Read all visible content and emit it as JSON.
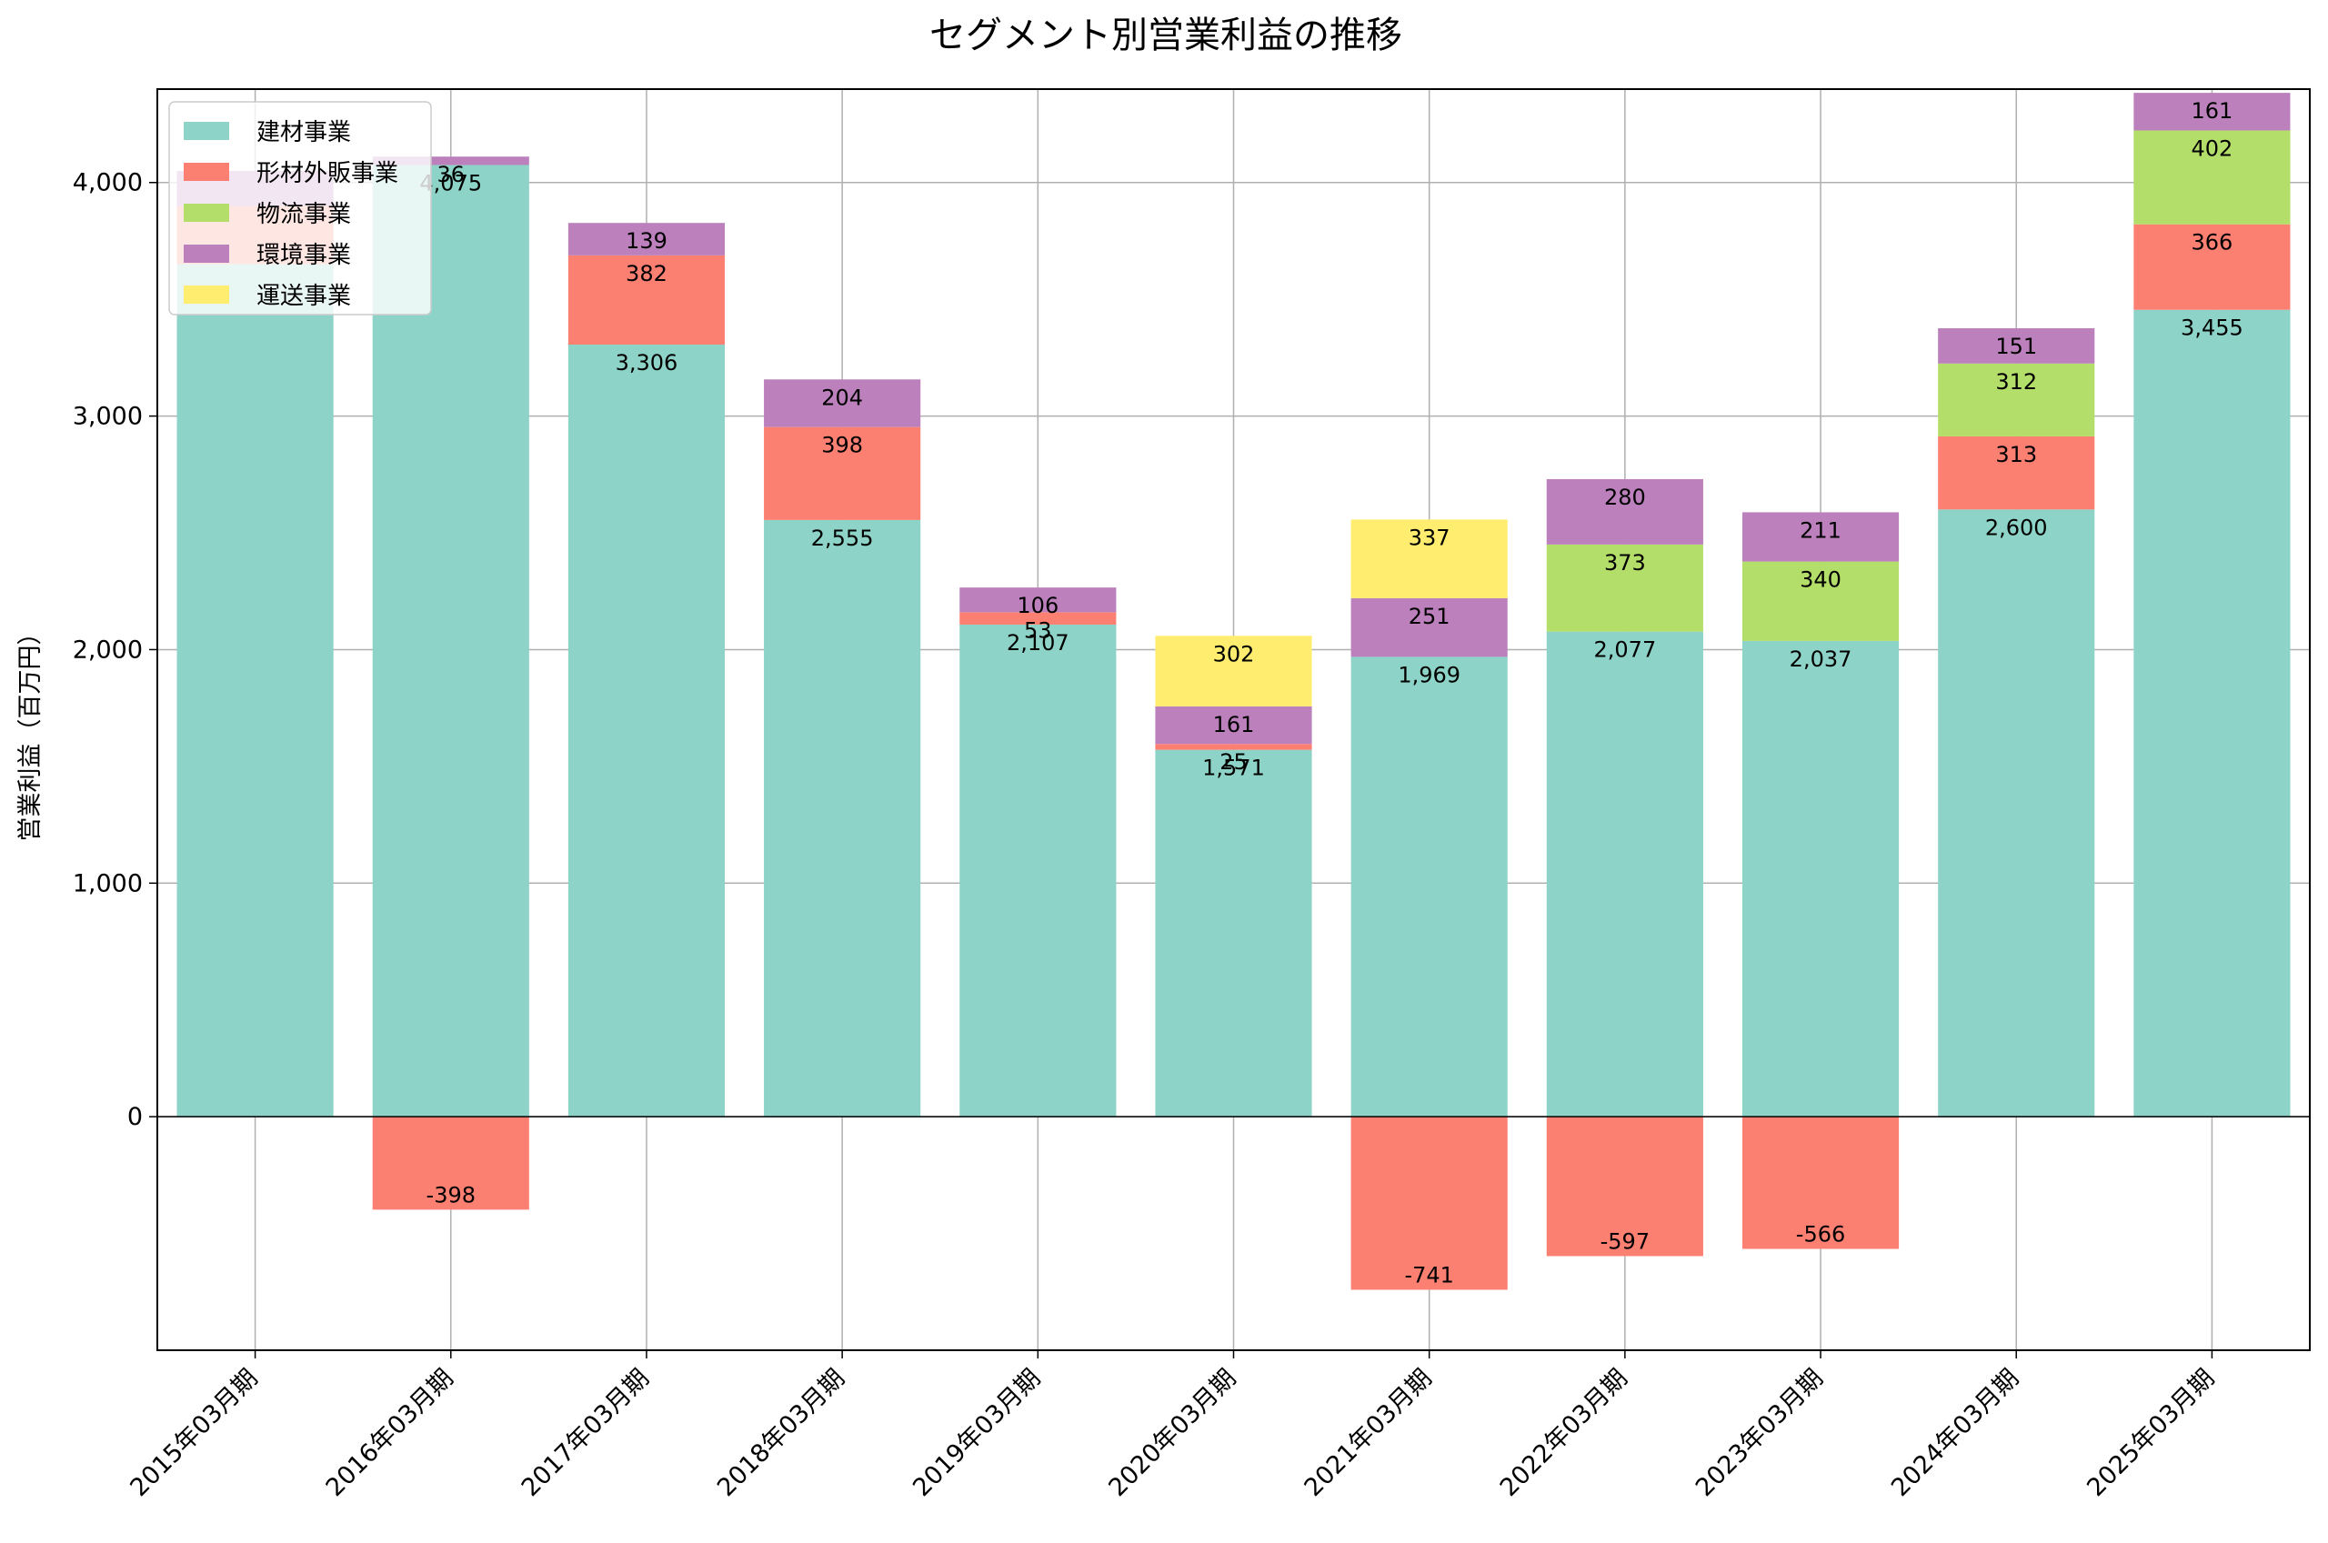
{
  "chart_data": {
    "type": "bar",
    "stacked": true,
    "title": "セグメント別営業利益の推移",
    "xlabel": "",
    "ylabel": "営業利益（百万円）",
    "ylim": [
      -1000,
      4400
    ],
    "yticks": [
      0,
      1000,
      2000,
      3000,
      4000
    ],
    "ytick_labels": [
      "0",
      "1,000",
      "2,000",
      "3,000",
      "4,000"
    ],
    "grid": true,
    "legend_position": "upper-left",
    "categories": [
      "2015年03月期",
      "2016年03月期",
      "2017年03月期",
      "2018年03月期",
      "2019年03月期",
      "2020年03月期",
      "2021年03月期",
      "2022年03月期",
      "2023年03月期",
      "2024年03月期",
      "2025年03月期"
    ],
    "series": [
      {
        "name": "建材事業",
        "color": "#8dd3c7",
        "values": [
          3650,
          4075,
          3306,
          2555,
          2107,
          1571,
          1969,
          2077,
          2037,
          2600,
          3455
        ],
        "labels": [
          "",
          "4,075",
          "3,306",
          "2,555",
          "2,107",
          "1,571",
          "1,969",
          "2,077",
          "2,037",
          "2,600",
          "3,455"
        ]
      },
      {
        "name": "形材外販事業",
        "color": "#fb8072",
        "values": [
          250,
          -398,
          382,
          398,
          53,
          25,
          -741,
          -597,
          -566,
          313,
          366
        ],
        "labels": [
          "",
          "-398",
          "382",
          "398",
          "53",
          "25",
          "-741",
          "-597",
          "-566",
          "313",
          "366"
        ]
      },
      {
        "name": "物流事業",
        "color": "#b3de69",
        "values": [
          0,
          0,
          0,
          0,
          0,
          0,
          0,
          373,
          340,
          312,
          402
        ],
        "labels": [
          "",
          "",
          "",
          "",
          "",
          "",
          "",
          "373",
          "340",
          "312",
          "402"
        ]
      },
      {
        "name": "環境事業",
        "color": "#bc80bd",
        "values": [
          150,
          36,
          139,
          204,
          106,
          161,
          251,
          280,
          211,
          151,
          161
        ],
        "labels": [
          "",
          "36",
          "139",
          "204",
          "106",
          "161",
          "251",
          "280",
          "211",
          "151",
          "161"
        ]
      },
      {
        "name": "運送事業",
        "color": "#ffed6f",
        "values": [
          0,
          0,
          0,
          0,
          0,
          302,
          337,
          0,
          0,
          0,
          0
        ],
        "labels": [
          "",
          "",
          "",
          "",
          "",
          "302",
          "337",
          "",
          "",
          "",
          ""
        ]
      }
    ]
  }
}
